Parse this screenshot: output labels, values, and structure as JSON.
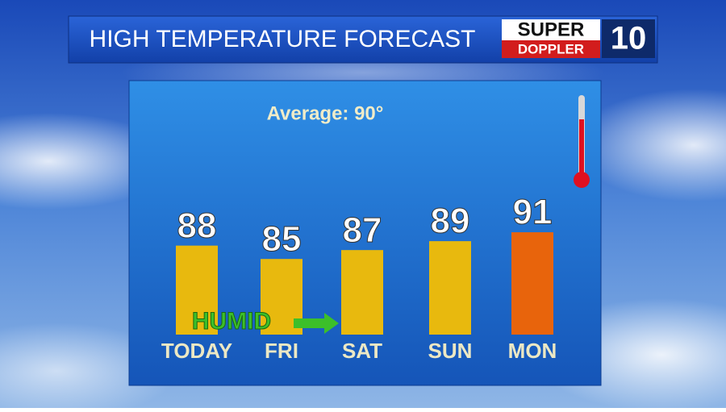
{
  "chart_data": {
    "type": "bar",
    "title": "HIGH TEMPERATURE FORECAST",
    "logo": {
      "top": "SUPER",
      "bottom": "DOPPLER",
      "number": "10"
    },
    "annotations": [
      "Average: 90°",
      "HUMID"
    ],
    "categories": [
      "TODAY",
      "FRI",
      "SAT",
      "SUN",
      "MON"
    ],
    "values": [
      88,
      85,
      87,
      89,
      91
    ],
    "colors": [
      "#e8b90e",
      "#e8b90e",
      "#e8b90e",
      "#e8b90e",
      "#e8640c"
    ],
    "ylim": [
      68,
      95
    ]
  }
}
